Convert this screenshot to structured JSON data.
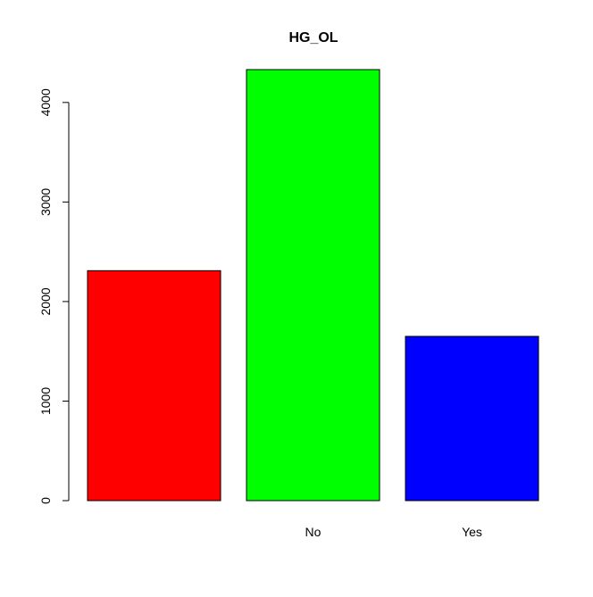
{
  "chart_data": {
    "type": "bar",
    "title": "HG_OL",
    "xlabel": "",
    "ylabel": "",
    "categories": [
      "",
      "No",
      "Yes"
    ],
    "values": [
      2310,
      4330,
      1650
    ],
    "colors": [
      "#ff0000",
      "#00ff00",
      "#0000ff"
    ],
    "ylim": [
      0,
      4330
    ],
    "yticks": [
      0,
      1000,
      2000,
      3000,
      4000
    ],
    "ytick_labels": [
      "0",
      "1000",
      "2000",
      "3000",
      "4000"
    ],
    "grid": false,
    "legend": "none"
  }
}
